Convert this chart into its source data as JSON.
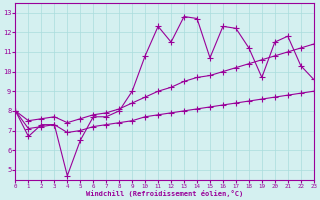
{
  "x": [
    0,
    1,
    2,
    3,
    4,
    5,
    6,
    7,
    8,
    9,
    10,
    11,
    12,
    13,
    14,
    15,
    16,
    17,
    18,
    19,
    20,
    21,
    22,
    23
  ],
  "y_main": [
    8.0,
    6.7,
    7.3,
    7.3,
    4.7,
    6.5,
    7.7,
    7.7,
    8.0,
    9.0,
    10.8,
    12.3,
    11.5,
    12.8,
    12.7,
    10.7,
    12.3,
    12.2,
    11.2,
    9.7,
    11.5,
    11.8,
    10.3,
    9.6
  ],
  "y_upper": [
    8.0,
    7.5,
    7.6,
    7.7,
    7.4,
    7.6,
    7.8,
    7.9,
    8.1,
    8.4,
    8.7,
    9.0,
    9.2,
    9.5,
    9.7,
    9.8,
    10.0,
    10.2,
    10.4,
    10.6,
    10.8,
    11.0,
    11.2,
    11.4
  ],
  "y_lower": [
    8.0,
    7.1,
    7.2,
    7.3,
    6.9,
    7.0,
    7.2,
    7.3,
    7.4,
    7.5,
    7.7,
    7.8,
    7.9,
    8.0,
    8.1,
    8.2,
    8.3,
    8.4,
    8.5,
    8.6,
    8.7,
    8.8,
    8.9,
    9.0
  ],
  "line_color": "#990099",
  "bg_color": "#d4f0f0",
  "grid_color": "#aadddd",
  "xlabel": "Windchill (Refroidissement éolien,°C)",
  "xlim": [
    0,
    23
  ],
  "ylim": [
    4.5,
    13.5
  ],
  "xticks": [
    0,
    1,
    2,
    3,
    4,
    5,
    6,
    7,
    8,
    9,
    10,
    11,
    12,
    13,
    14,
    15,
    16,
    17,
    18,
    19,
    20,
    21,
    22,
    23
  ],
  "yticks": [
    5,
    6,
    7,
    8,
    9,
    10,
    11,
    12,
    13
  ],
  "marker": "+",
  "markersize": 4,
  "linewidth": 0.8
}
